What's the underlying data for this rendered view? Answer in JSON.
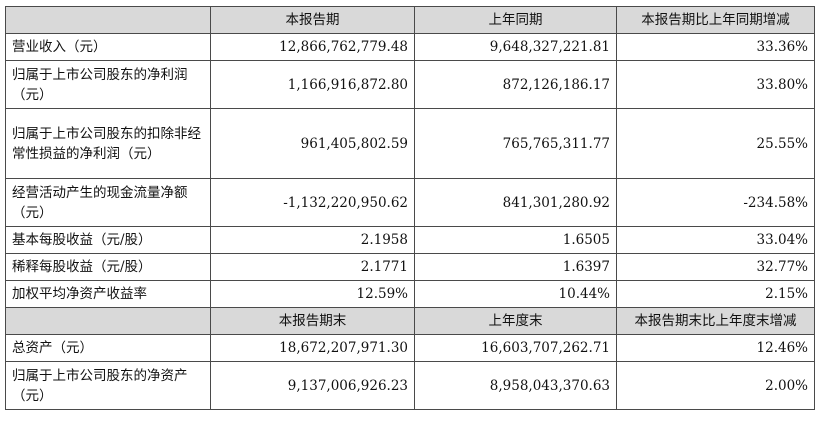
{
  "header_current": {
    "cols": [
      "",
      "本报告期",
      "上年同期",
      "本报告期比上年同期增减"
    ]
  },
  "rows_current": [
    {
      "label": "营业收入（元）",
      "current": "12,866,762,779.48",
      "prior": "9,648,327,221.81",
      "change": "33.36%"
    },
    {
      "label": "归属于上市公司股东的净利润（元）",
      "current": "1,166,916,872.80",
      "prior": "872,126,186.17",
      "change": "33.80%"
    },
    {
      "label": "归属于上市公司股东的扣除非经常性损益的净利润（元）",
      "current": "961,405,802.59",
      "prior": "765,765,311.77",
      "change": "25.55%"
    },
    {
      "label": "经营活动产生的现金流量净额（元）",
      "current": "-1,132,220,950.62",
      "prior": "841,301,280.92",
      "change": "-234.58%"
    },
    {
      "label": "基本每股收益（元/股）",
      "current": "2.1958",
      "prior": "1.6505",
      "change": "33.04%"
    },
    {
      "label": "稀释每股收益（元/股）",
      "current": "2.1771",
      "prior": "1.6397",
      "change": "32.77%"
    },
    {
      "label": "加权平均净资产收益率",
      "current": "12.59%",
      "prior": "10.44%",
      "change": "2.15%"
    }
  ],
  "header_end": {
    "cols": [
      "",
      "本报告期末",
      "上年度末",
      "本报告期末比上年度末增减"
    ]
  },
  "rows_end": [
    {
      "label": "总资产（元）",
      "current": "18,672,207,971.30",
      "prior": "16,603,707,262.71",
      "change": "12.46%"
    },
    {
      "label": "归属于上市公司股东的净资产（元）",
      "current": "9,137,006,926.23",
      "prior": "8,958,043,370.63",
      "change": "2.00%"
    }
  ]
}
